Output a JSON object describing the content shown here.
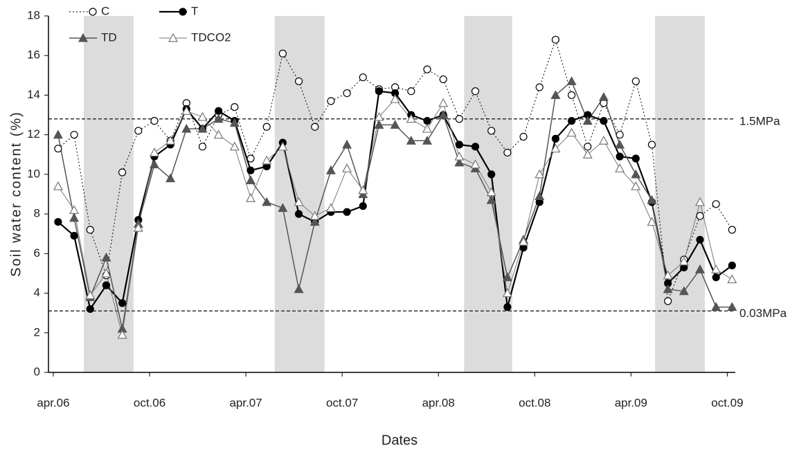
{
  "chart_data": {
    "type": "line",
    "x_label": "Dates",
    "y_label": "Soil water content (%)",
    "x": [
      0.3,
      1.3,
      2.3,
      3.3,
      4.3,
      5.3,
      6.3,
      7.3,
      8.3,
      9.3,
      10.3,
      11.3,
      12.3,
      13.3,
      14.3,
      15.3,
      16.3,
      17.3,
      18.3,
      19.3,
      20.3,
      21.3,
      22.3,
      23.3,
      24.3,
      25.3,
      26.3,
      27.3,
      28.3,
      29.3,
      30.3,
      31.3,
      32.3,
      33.3,
      34.3,
      35.3,
      36.3,
      37.3,
      38.3,
      39.3,
      40.3,
      41.3,
      42.3
    ],
    "series": [
      {
        "name": "C",
        "color": "#000000",
        "marker": "circle-open",
        "dash": "dotted",
        "width": 1,
        "values": [
          11.3,
          12.0,
          7.2,
          4.9,
          10.1,
          12.2,
          12.7,
          11.7,
          13.6,
          11.4,
          13.0,
          13.4,
          10.8,
          12.4,
          16.1,
          14.7,
          12.4,
          13.7,
          14.1,
          14.9,
          14.3,
          14.4,
          14.2,
          15.3,
          14.8,
          12.8,
          14.2,
          12.2,
          11.1,
          11.9,
          14.4,
          16.8,
          14.0,
          11.4,
          13.6,
          12.0,
          14.7,
          11.5,
          3.6,
          5.7,
          7.9,
          8.5,
          7.2
        ]
      },
      {
        "name": "T",
        "color": "#000000",
        "marker": "circle-filled",
        "dash": "solid",
        "width": 2.2,
        "values": [
          7.6,
          6.9,
          3.2,
          4.4,
          3.5,
          7.7,
          10.9,
          11.5,
          13.3,
          12.3,
          13.2,
          12.7,
          10.2,
          10.4,
          11.6,
          8.0,
          7.6,
          8.1,
          8.1,
          8.4,
          14.2,
          14.1,
          13.0,
          12.7,
          13.0,
          11.5,
          11.4,
          10.0,
          3.3,
          6.3,
          8.6,
          11.8,
          12.7,
          13.0,
          12.7,
          10.9,
          10.8,
          8.6,
          4.5,
          5.3,
          6.7,
          4.8,
          5.4
        ]
      },
      {
        "name": "TD",
        "color": "#555555",
        "marker": "triangle-filled",
        "dash": "solid",
        "width": 1.5,
        "values": [
          12.0,
          7.8,
          3.8,
          5.8,
          2.2,
          7.5,
          10.5,
          9.8,
          12.3,
          12.3,
          12.8,
          12.6,
          9.7,
          8.6,
          8.3,
          4.2,
          7.6,
          10.2,
          11.5,
          9.0,
          12.5,
          12.5,
          11.7,
          11.7,
          13.0,
          10.6,
          10.3,
          8.7,
          4.8,
          6.7,
          8.9,
          14.0,
          14.7,
          12.7,
          13.9,
          11.5,
          10.0,
          8.7,
          4.2,
          4.1,
          5.2,
          3.3,
          3.3
        ]
      },
      {
        "name": "TDCO2",
        "color": "#777777",
        "marker": "triangle-open",
        "dash": "solid",
        "width": 1,
        "values": [
          9.4,
          8.2,
          3.9,
          5.0,
          1.9,
          7.3,
          11.1,
          11.7,
          13.2,
          12.9,
          12.0,
          11.4,
          8.8,
          10.7,
          11.4,
          8.6,
          7.9,
          8.3,
          10.3,
          9.2,
          12.9,
          13.8,
          12.8,
          12.3,
          13.6,
          10.9,
          10.5,
          9.1,
          4.0,
          6.6,
          10.0,
          11.3,
          12.1,
          11.0,
          11.7,
          10.3,
          9.4,
          7.6,
          4.9,
          5.6,
          8.6,
          5.2,
          4.7
        ]
      }
    ],
    "xlim": [
      -0.3,
      42.5
    ],
    "xticks": [
      {
        "value": 0,
        "label": "apr.06"
      },
      {
        "value": 6,
        "label": "oct.06"
      },
      {
        "value": 12,
        "label": "apr.07"
      },
      {
        "value": 18,
        "label": "oct.07"
      },
      {
        "value": 24,
        "label": "apr.08"
      },
      {
        "value": 30,
        "label": "oct.08"
      },
      {
        "value": 36,
        "label": "apr.09"
      },
      {
        "value": 42,
        "label": "oct.09"
      }
    ],
    "ylim": [
      0,
      18
    ],
    "yticks": [
      0,
      2,
      4,
      6,
      8,
      10,
      12,
      14,
      16,
      18
    ],
    "shaded_ranges": [
      [
        1.9,
        5.0
      ],
      [
        13.8,
        16.9
      ],
      [
        25.6,
        28.6
      ],
      [
        37.5,
        40.6
      ]
    ],
    "reference_lines": [
      {
        "value": 12.8,
        "label": "1.5MPa"
      },
      {
        "value": 3.1,
        "label": "0.03MPa"
      }
    ]
  }
}
